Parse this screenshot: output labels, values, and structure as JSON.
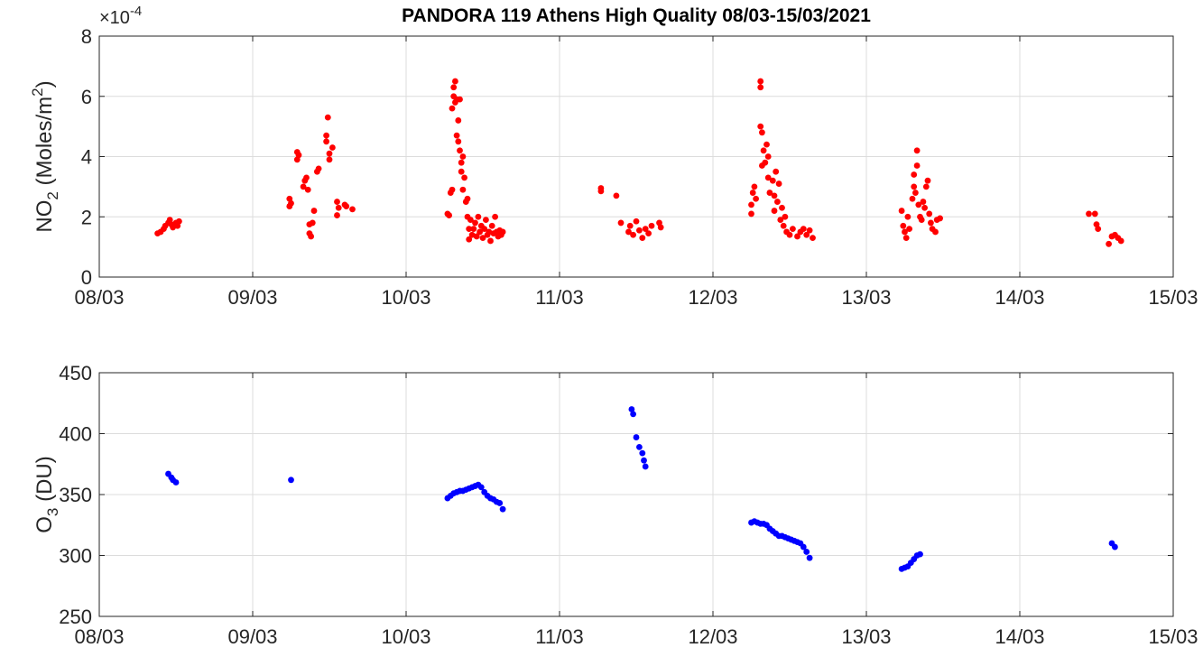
{
  "chart_data": [
    {
      "type": "scatter",
      "title": "PANDORA 119 Athens High Quality 08/03-15/03/2021",
      "xlabel": "",
      "ylabel": "NO2 (Moles/m2)",
      "ylabel_main": "NO",
      "ylabel_sub": "2",
      "ylabel_rest": " (Moles/m",
      "ylabel_sup": "2",
      "ylabel_end": ")",
      "exponent_label": "×10",
      "exponent_power": "-4",
      "x_unit": "days since 08/03/2021",
      "xlim": [
        0,
        7
      ],
      "ylim": [
        0,
        8
      ],
      "xticks": [
        0,
        1,
        2,
        3,
        4,
        5,
        6,
        7
      ],
      "xtick_labels": [
        "08/03",
        "09/03",
        "10/03",
        "11/03",
        "12/03",
        "13/03",
        "14/03",
        "15/03"
      ],
      "yticks": [
        0,
        2,
        4,
        6,
        8
      ],
      "ytick_labels": [
        "0",
        "2",
        "4",
        "6",
        "8"
      ],
      "grid": true,
      "color": "#ff0000",
      "series": [
        {
          "name": "NO2",
          "points": [
            [
              0.38,
              1.45
            ],
            [
              0.4,
              1.5
            ],
            [
              0.42,
              1.6
            ],
            [
              0.43,
              1.7
            ],
            [
              0.45,
              1.8
            ],
            [
              0.46,
              1.9
            ],
            [
              0.47,
              1.75
            ],
            [
              0.48,
              1.65
            ],
            [
              0.5,
              1.8
            ],
            [
              0.51,
              1.7
            ],
            [
              0.52,
              1.85
            ],
            [
              1.24,
              2.35
            ],
            [
              1.24,
              2.6
            ],
            [
              1.25,
              2.45
            ],
            [
              1.29,
              3.9
            ],
            [
              1.29,
              4.15
            ],
            [
              1.3,
              4.05
            ],
            [
              1.33,
              3.0
            ],
            [
              1.34,
              3.2
            ],
            [
              1.35,
              3.3
            ],
            [
              1.36,
              2.9
            ],
            [
              1.37,
              1.45
            ],
            [
              1.37,
              1.75
            ],
            [
              1.38,
              1.35
            ],
            [
              1.39,
              1.8
            ],
            [
              1.4,
              2.2
            ],
            [
              1.42,
              3.5
            ],
            [
              1.43,
              3.6
            ],
            [
              1.48,
              4.5
            ],
            [
              1.48,
              4.7
            ],
            [
              1.49,
              5.3
            ],
            [
              1.5,
              3.9
            ],
            [
              1.5,
              4.1
            ],
            [
              1.52,
              4.3
            ],
            [
              1.55,
              2.05
            ],
            [
              1.55,
              2.5
            ],
            [
              1.56,
              2.3
            ],
            [
              1.6,
              2.4
            ],
            [
              1.61,
              2.35
            ],
            [
              1.65,
              2.25
            ],
            [
              2.27,
              2.1
            ],
            [
              2.28,
              2.05
            ],
            [
              2.29,
              2.8
            ],
            [
              2.3,
              2.9
            ],
            [
              2.3,
              5.6
            ],
            [
              2.31,
              6.0
            ],
            [
              2.31,
              6.3
            ],
            [
              2.32,
              6.5
            ],
            [
              2.32,
              5.8
            ],
            [
              2.33,
              4.7
            ],
            [
              2.33,
              5.9
            ],
            [
              2.34,
              4.5
            ],
            [
              2.34,
              5.2
            ],
            [
              2.35,
              4.2
            ],
            [
              2.35,
              5.9
            ],
            [
              2.36,
              3.8
            ],
            [
              2.36,
              3.5
            ],
            [
              2.37,
              4.0
            ],
            [
              2.37,
              2.9
            ],
            [
              2.38,
              3.3
            ],
            [
              2.39,
              2.5
            ],
            [
              2.4,
              2.0
            ],
            [
              2.4,
              2.6
            ],
            [
              2.41,
              1.6
            ],
            [
              2.41,
              1.25
            ],
            [
              2.42,
              1.9
            ],
            [
              2.43,
              1.4
            ],
            [
              2.44,
              1.6
            ],
            [
              2.45,
              1.8
            ],
            [
              2.46,
              1.35
            ],
            [
              2.47,
              2.0
            ],
            [
              2.48,
              1.5
            ],
            [
              2.49,
              1.7
            ],
            [
              2.5,
              1.3
            ],
            [
              2.51,
              1.6
            ],
            [
              2.52,
              1.9
            ],
            [
              2.53,
              1.4
            ],
            [
              2.54,
              1.5
            ],
            [
              2.55,
              1.2
            ],
            [
              2.56,
              1.7
            ],
            [
              2.57,
              1.45
            ],
            [
              2.58,
              2.0
            ],
            [
              2.59,
              1.5
            ],
            [
              2.6,
              1.35
            ],
            [
              2.61,
              1.55
            ],
            [
              2.62,
              1.4
            ],
            [
              2.63,
              1.5
            ],
            [
              3.27,
              2.95
            ],
            [
              3.27,
              2.85
            ],
            [
              3.37,
              2.7
            ],
            [
              3.4,
              1.8
            ],
            [
              3.45,
              1.5
            ],
            [
              3.46,
              1.7
            ],
            [
              3.48,
              1.4
            ],
            [
              3.5,
              1.85
            ],
            [
              3.52,
              1.55
            ],
            [
              3.54,
              1.3
            ],
            [
              3.56,
              1.6
            ],
            [
              3.58,
              1.45
            ],
            [
              3.6,
              1.7
            ],
            [
              3.65,
              1.8
            ],
            [
              3.66,
              1.65
            ],
            [
              4.25,
              2.1
            ],
            [
              4.25,
              2.4
            ],
            [
              4.26,
              2.8
            ],
            [
              4.27,
              3.0
            ],
            [
              4.28,
              2.6
            ],
            [
              4.31,
              6.3
            ],
            [
              4.31,
              6.5
            ],
            [
              4.31,
              5.0
            ],
            [
              4.32,
              4.8
            ],
            [
              4.32,
              3.7
            ],
            [
              4.33,
              4.2
            ],
            [
              4.34,
              3.8
            ],
            [
              4.35,
              4.4
            ],
            [
              4.36,
              4.0
            ],
            [
              4.36,
              3.3
            ],
            [
              4.37,
              2.8
            ],
            [
              4.39,
              3.2
            ],
            [
              4.4,
              2.7
            ],
            [
              4.4,
              2.2
            ],
            [
              4.41,
              3.5
            ],
            [
              4.42,
              2.5
            ],
            [
              4.43,
              3.1
            ],
            [
              4.44,
              1.9
            ],
            [
              4.45,
              2.3
            ],
            [
              4.46,
              1.7
            ],
            [
              4.47,
              2.0
            ],
            [
              4.48,
              1.5
            ],
            [
              4.5,
              1.4
            ],
            [
              4.52,
              1.6
            ],
            [
              4.55,
              1.35
            ],
            [
              4.57,
              1.5
            ],
            [
              4.59,
              1.6
            ],
            [
              4.61,
              1.4
            ],
            [
              4.63,
              1.55
            ],
            [
              4.65,
              1.3
            ],
            [
              5.23,
              2.2
            ],
            [
              5.24,
              1.7
            ],
            [
              5.25,
              1.5
            ],
            [
              5.26,
              1.3
            ],
            [
              5.27,
              2.0
            ],
            [
              5.28,
              1.6
            ],
            [
              5.3,
              2.6
            ],
            [
              5.31,
              3.0
            ],
            [
              5.31,
              3.4
            ],
            [
              5.32,
              2.8
            ],
            [
              5.33,
              4.2
            ],
            [
              5.33,
              3.7
            ],
            [
              5.34,
              2.4
            ],
            [
              5.35,
              2.0
            ],
            [
              5.36,
              1.9
            ],
            [
              5.37,
              2.5
            ],
            [
              5.38,
              2.3
            ],
            [
              5.39,
              3.0
            ],
            [
              5.4,
              3.2
            ],
            [
              5.41,
              2.1
            ],
            [
              5.42,
              1.8
            ],
            [
              5.43,
              1.6
            ],
            [
              5.45,
              1.5
            ],
            [
              5.46,
              1.9
            ],
            [
              5.48,
              1.95
            ],
            [
              6.45,
              2.1
            ],
            [
              6.49,
              2.1
            ],
            [
              6.5,
              1.75
            ],
            [
              6.51,
              1.6
            ],
            [
              6.58,
              1.1
            ],
            [
              6.6,
              1.35
            ],
            [
              6.62,
              1.4
            ],
            [
              6.64,
              1.3
            ],
            [
              6.66,
              1.2
            ]
          ]
        }
      ]
    },
    {
      "type": "scatter",
      "title": "",
      "xlabel": "",
      "ylabel": "O3 (DU)",
      "ylabel_main": "O",
      "ylabel_sub": "3",
      "ylabel_rest": " (DU)",
      "x_unit": "days since 08/03/2021",
      "xlim": [
        0,
        7
      ],
      "ylim": [
        250,
        450
      ],
      "xticks": [
        0,
        1,
        2,
        3,
        4,
        5,
        6,
        7
      ],
      "xtick_labels": [
        "08/03",
        "09/03",
        "10/03",
        "11/03",
        "12/03",
        "13/03",
        "14/03",
        "15/03"
      ],
      "yticks": [
        250,
        300,
        350,
        400,
        450
      ],
      "ytick_labels": [
        "250",
        "300",
        "350",
        "400",
        "450"
      ],
      "grid": true,
      "color": "#0000ff",
      "series": [
        {
          "name": "O3",
          "points": [
            [
              0.45,
              367
            ],
            [
              0.47,
              364
            ],
            [
              0.48,
              362
            ],
            [
              0.5,
              360
            ],
            [
              1.25,
              362
            ],
            [
              2.27,
              347
            ],
            [
              2.29,
              349
            ],
            [
              2.31,
              351
            ],
            [
              2.33,
              352
            ],
            [
              2.35,
              353
            ],
            [
              2.37,
              353
            ],
            [
              2.39,
              354
            ],
            [
              2.41,
              355
            ],
            [
              2.43,
              356
            ],
            [
              2.45,
              357
            ],
            [
              2.47,
              358
            ],
            [
              2.49,
              356
            ],
            [
              2.51,
              352
            ],
            [
              2.53,
              349
            ],
            [
              2.55,
              347
            ],
            [
              2.57,
              346
            ],
            [
              2.59,
              344
            ],
            [
              2.61,
              343
            ],
            [
              2.63,
              338
            ],
            [
              3.47,
              420
            ],
            [
              3.48,
              416
            ],
            [
              3.5,
              397
            ],
            [
              3.52,
              389
            ],
            [
              3.54,
              384
            ],
            [
              3.55,
              378
            ],
            [
              3.56,
              373
            ],
            [
              4.25,
              327
            ],
            [
              4.27,
              328
            ],
            [
              4.29,
              327
            ],
            [
              4.31,
              326
            ],
            [
              4.33,
              326
            ],
            [
              4.35,
              325
            ],
            [
              4.37,
              322
            ],
            [
              4.39,
              320
            ],
            [
              4.41,
              318
            ],
            [
              4.43,
              316
            ],
            [
              4.45,
              316
            ],
            [
              4.47,
              315
            ],
            [
              4.49,
              314
            ],
            [
              4.51,
              313
            ],
            [
              4.53,
              312
            ],
            [
              4.55,
              311
            ],
            [
              4.57,
              310
            ],
            [
              4.59,
              307
            ],
            [
              4.61,
              303
            ],
            [
              4.63,
              298
            ],
            [
              5.23,
              289
            ],
            [
              5.25,
              290
            ],
            [
              5.27,
              291
            ],
            [
              5.29,
              294
            ],
            [
              5.31,
              297
            ],
            [
              5.33,
              300
            ],
            [
              5.35,
              301
            ],
            [
              6.6,
              310
            ],
            [
              6.62,
              307
            ]
          ]
        }
      ]
    }
  ]
}
